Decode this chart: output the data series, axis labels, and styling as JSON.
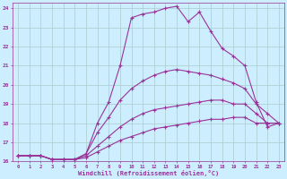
{
  "xlabel": "Windchill (Refroidissement éolien,°C)",
  "bg_color": "#cceeff",
  "grid_color": "#aacccc",
  "line_color": "#993399",
  "xlim": [
    -0.5,
    23.5
  ],
  "ylim": [
    16,
    24.3
  ],
  "yticks": [
    16,
    17,
    18,
    19,
    20,
    21,
    22,
    23,
    24
  ],
  "xticks": [
    0,
    1,
    2,
    3,
    4,
    5,
    6,
    7,
    8,
    9,
    10,
    11,
    12,
    13,
    14,
    15,
    16,
    17,
    18,
    19,
    20,
    21,
    22,
    23
  ],
  "series": [
    {
      "x": [
        0,
        1,
        2,
        3,
        4,
        5,
        6,
        7,
        8,
        9,
        10,
        11,
        12,
        13,
        14,
        15,
        16,
        17,
        18,
        19,
        20,
        21,
        22,
        23
      ],
      "y": [
        16.3,
        16.3,
        16.3,
        16.1,
        16.1,
        16.1,
        16.2,
        16.5,
        16.8,
        17.1,
        17.3,
        17.5,
        17.7,
        17.8,
        17.9,
        18.0,
        18.1,
        18.2,
        18.2,
        18.3,
        18.3,
        18.0,
        18.0,
        18.0
      ]
    },
    {
      "x": [
        0,
        1,
        2,
        3,
        4,
        5,
        6,
        7,
        8,
        9,
        10,
        11,
        12,
        13,
        14,
        15,
        16,
        17,
        18,
        19,
        20,
        21,
        22,
        23
      ],
      "y": [
        16.3,
        16.3,
        16.3,
        16.1,
        16.1,
        16.1,
        16.3,
        16.8,
        17.3,
        17.8,
        18.2,
        18.5,
        18.7,
        18.8,
        18.9,
        19.0,
        19.1,
        19.2,
        19.2,
        19.0,
        19.0,
        18.5,
        18.0,
        18.0
      ]
    },
    {
      "x": [
        0,
        1,
        2,
        3,
        4,
        5,
        6,
        7,
        8,
        9,
        10,
        11,
        12,
        13,
        14,
        15,
        16,
        17,
        18,
        19,
        20,
        21,
        22,
        23
      ],
      "y": [
        16.3,
        16.3,
        16.3,
        16.1,
        16.1,
        16.1,
        16.4,
        17.5,
        18.3,
        19.2,
        19.8,
        20.2,
        20.5,
        20.7,
        20.8,
        20.7,
        20.6,
        20.5,
        20.3,
        20.1,
        19.8,
        19.0,
        18.5,
        18.0
      ]
    },
    {
      "x": [
        0,
        1,
        2,
        3,
        4,
        5,
        6,
        7,
        8,
        9,
        10,
        11,
        12,
        13,
        14,
        15,
        16,
        17,
        18,
        19,
        20,
        21,
        22,
        23
      ],
      "y": [
        16.3,
        16.3,
        16.3,
        16.1,
        16.1,
        16.1,
        16.4,
        18.0,
        19.1,
        21.0,
        23.5,
        23.7,
        23.8,
        24.0,
        24.1,
        23.3,
        23.8,
        22.8,
        21.9,
        21.5,
        21.0,
        19.1,
        17.8,
        18.0
      ]
    }
  ]
}
